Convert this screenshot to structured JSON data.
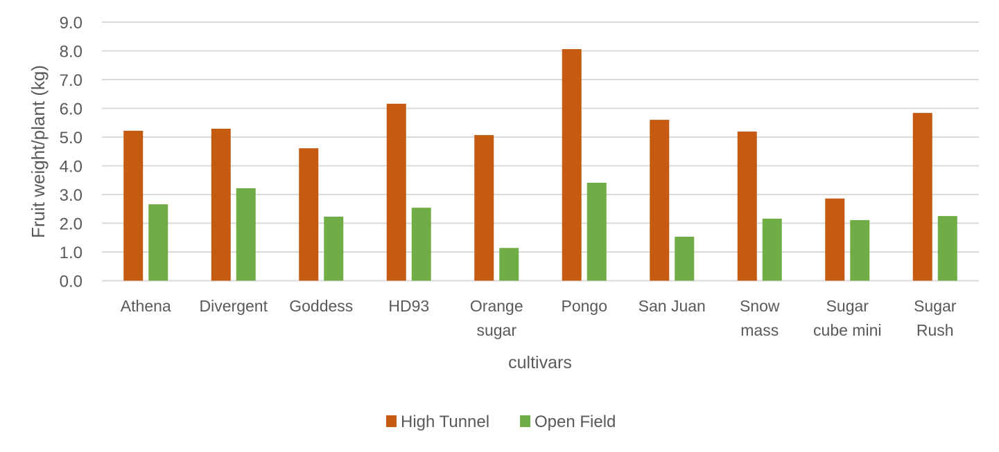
{
  "chart_data": {
    "type": "bar",
    "title": "",
    "xlabel": "cultivars",
    "ylabel": "Fruit weight/plant (kg)",
    "ylim": [
      0,
      9
    ],
    "yticks": [
      "0.0",
      "1.0",
      "2.0",
      "3.0",
      "4.0",
      "5.0",
      "6.0",
      "7.0",
      "8.0",
      "9.0"
    ],
    "grid": true,
    "legend_position": "bottom",
    "categories": [
      [
        "Athena"
      ],
      [
        "Divergent"
      ],
      [
        "Goddess"
      ],
      [
        "HD93"
      ],
      [
        "Orange",
        "sugar"
      ],
      [
        "Pongo"
      ],
      [
        "San Juan"
      ],
      [
        "Snow",
        "mass"
      ],
      [
        "Sugar",
        "cube mini"
      ],
      [
        "Sugar",
        "Rush"
      ]
    ],
    "series": [
      {
        "name": "High Tunnel",
        "color": "#C55A11",
        "values": [
          5.22,
          5.29,
          4.61,
          6.16,
          5.07,
          8.06,
          5.6,
          5.19,
          2.86,
          5.84
        ]
      },
      {
        "name": "Open Field",
        "color": "#70AD47",
        "values": [
          2.66,
          3.22,
          2.23,
          2.54,
          1.14,
          3.41,
          1.53,
          2.16,
          2.11,
          2.25
        ]
      }
    ]
  }
}
